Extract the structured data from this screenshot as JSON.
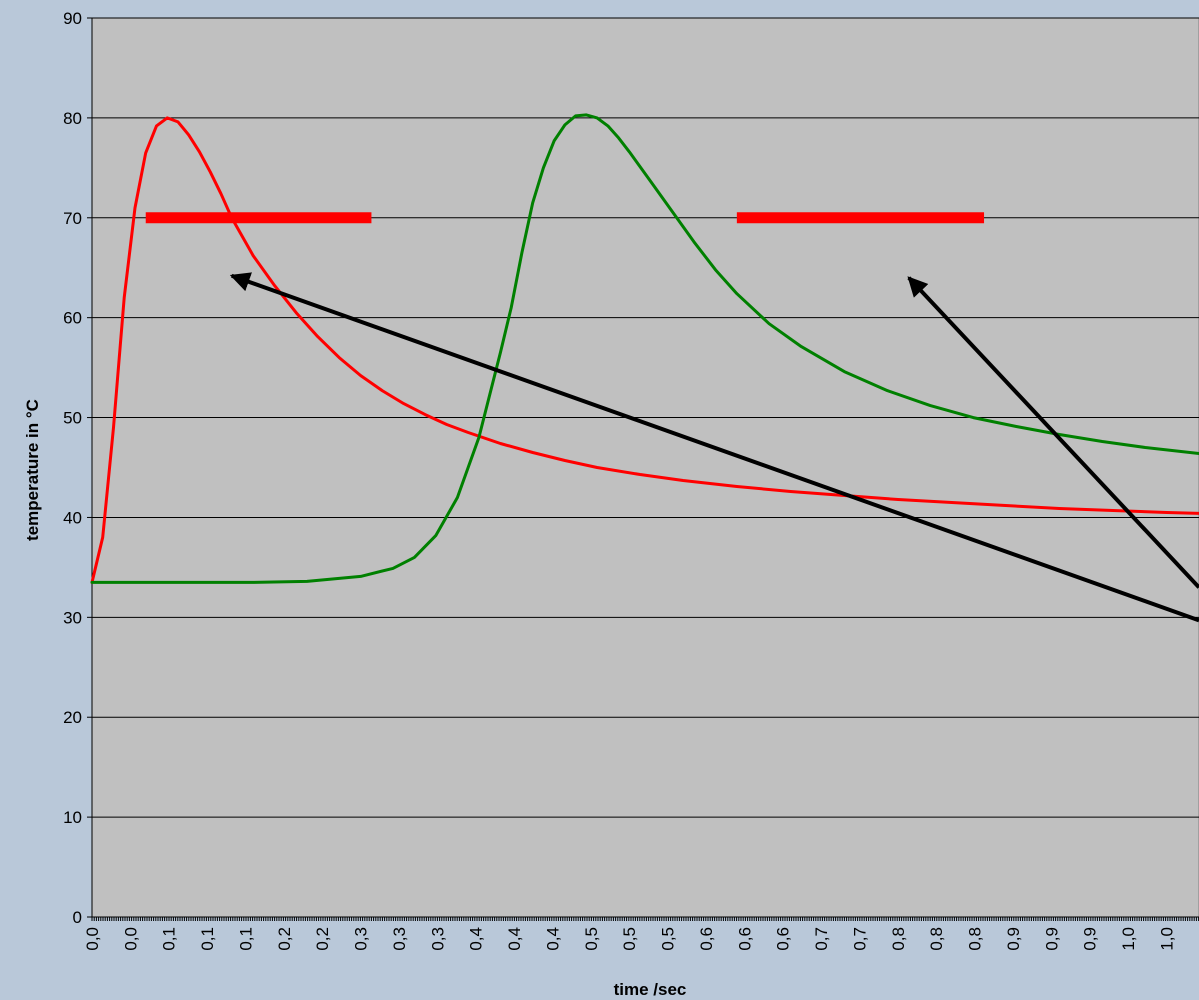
{
  "chart_data": {
    "type": "line",
    "title": "",
    "xlabel": "time /sec",
    "ylabel": "temperature in °C",
    "xlim": [
      0.0,
      1.03
    ],
    "ylim": [
      0,
      90
    ],
    "y_ticks": [
      0,
      10,
      20,
      30,
      40,
      50,
      60,
      70,
      80,
      90
    ],
    "x_tick_labels": [
      "0,0",
      "0,0",
      "0,1",
      "0,1",
      "0,1",
      "0,2",
      "0,2",
      "0,3",
      "0,3",
      "0,3",
      "0,4",
      "0,4",
      "0,4",
      "0,5",
      "0,5",
      "0,5",
      "0,6",
      "0,6",
      "0,6",
      "0,7",
      "0,7",
      "0,8",
      "0,8",
      "0,8",
      "0,9",
      "0,9",
      "0,9",
      "1,0",
      "1,0"
    ],
    "grid": "horizontal",
    "legend": "none",
    "plot_background": "#c0c0c0",
    "page_background": "#b9c8d9",
    "series": [
      {
        "color": "#ff0000",
        "x": [
          0.0,
          0.01,
          0.02,
          0.03,
          0.04,
          0.05,
          0.06,
          0.07,
          0.08,
          0.09,
          0.1,
          0.11,
          0.12,
          0.13,
          0.15,
          0.17,
          0.19,
          0.21,
          0.23,
          0.25,
          0.27,
          0.29,
          0.31,
          0.33,
          0.35,
          0.38,
          0.41,
          0.44,
          0.47,
          0.51,
          0.55,
          0.6,
          0.65,
          0.7,
          0.75,
          0.8,
          0.85,
          0.9,
          0.95,
          1.0,
          1.03
        ],
        "y": [
          33.5,
          38,
          49,
          62,
          71,
          76.5,
          79.2,
          80,
          79.6,
          78.3,
          76.6,
          74.6,
          72.4,
          70,
          66.2,
          63.2,
          60.5,
          58.1,
          56,
          54.2,
          52.7,
          51.4,
          50.3,
          49.3,
          48.5,
          47.4,
          46.5,
          45.7,
          45,
          44.3,
          43.7,
          43.1,
          42.6,
          42.2,
          41.8,
          41.5,
          41.2,
          40.9,
          40.7,
          40.5,
          40.4
        ]
      },
      {
        "color": "#008000",
        "x": [
          0.0,
          0.05,
          0.1,
          0.15,
          0.2,
          0.22,
          0.25,
          0.28,
          0.3,
          0.32,
          0.34,
          0.36,
          0.38,
          0.39,
          0.4,
          0.41,
          0.42,
          0.43,
          0.44,
          0.45,
          0.46,
          0.47,
          0.48,
          0.49,
          0.5,
          0.52,
          0.54,
          0.56,
          0.58,
          0.6,
          0.63,
          0.66,
          0.7,
          0.74,
          0.78,
          0.82,
          0.86,
          0.9,
          0.94,
          0.98,
          1.03
        ],
        "y": [
          33.5,
          33.5,
          33.5,
          33.5,
          33.6,
          33.8,
          34.1,
          34.9,
          36,
          38.2,
          42,
          48,
          56.5,
          61,
          66.5,
          71.5,
          75,
          77.7,
          79.3,
          80.2,
          80.3,
          80,
          79.2,
          78,
          76.6,
          73.6,
          70.6,
          67.6,
          64.8,
          62.4,
          59.4,
          57.1,
          54.6,
          52.7,
          51.2,
          50,
          49.1,
          48.3,
          47.6,
          47,
          46.4
        ]
      }
    ],
    "annotations": {
      "threshold_bars": [
        {
          "y": 70,
          "x_start": 0.05,
          "x_end": 0.26,
          "color": "#ff0000"
        },
        {
          "y": 70,
          "x_start": 0.6,
          "x_end": 0.83,
          "color": "#ff0000"
        }
      ],
      "arrows": [
        {
          "color": "#000000",
          "from": [
            1.03,
            29.7
          ],
          "to": [
            0.13,
            64.2
          ]
        },
        {
          "color": "#000000",
          "from": [
            1.03,
            33.0
          ],
          "to": [
            0.76,
            64.0
          ]
        }
      ]
    }
  }
}
